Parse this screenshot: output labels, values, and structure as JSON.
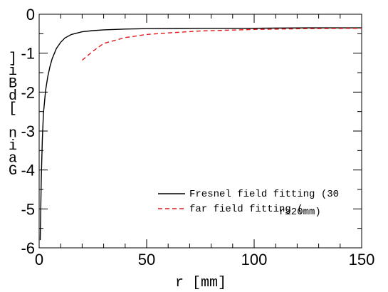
{
  "chart_data": {
    "type": "line",
    "title": "",
    "xlabel": "r [mm]",
    "ylabel": "Gain [dBi]",
    "xlim": [
      0,
      150
    ],
    "ylim": [
      -6,
      0
    ],
    "xticks": [
      0,
      50,
      100,
      150
    ],
    "yticks": [
      0,
      -1,
      -2,
      -3,
      -4,
      -5,
      -6
    ],
    "grid": false,
    "legend_position": "lower-right",
    "series": [
      {
        "name": "Fresnel field fitting (30",
        "color": "#000000",
        "style": "solid",
        "x": [
          0.5,
          1,
          1.5,
          2,
          3,
          4,
          5,
          6,
          8,
          10,
          12,
          15,
          20,
          25,
          30,
          40,
          50,
          75,
          100,
          125,
          150
        ],
        "y": [
          -5.8,
          -4.2,
          -3.2,
          -2.55,
          -1.95,
          -1.6,
          -1.35,
          -1.15,
          -0.88,
          -0.72,
          -0.61,
          -0.52,
          -0.45,
          -0.42,
          -0.4,
          -0.38,
          -0.37,
          -0.36,
          -0.36,
          -0.35,
          -0.35
        ]
      },
      {
        "name": "far field fitting (",
        "color": "#e31a1c",
        "style": "dashed",
        "x": [
          20,
          25,
          30,
          40,
          50,
          60,
          75,
          100,
          125,
          150
        ],
        "y": [
          -1.18,
          -0.95,
          -0.75,
          -0.6,
          -0.52,
          -0.48,
          -0.43,
          -0.39,
          -0.37,
          -0.36
        ]
      }
    ],
    "legend_overlap_text": "r≥20mm)"
  }
}
